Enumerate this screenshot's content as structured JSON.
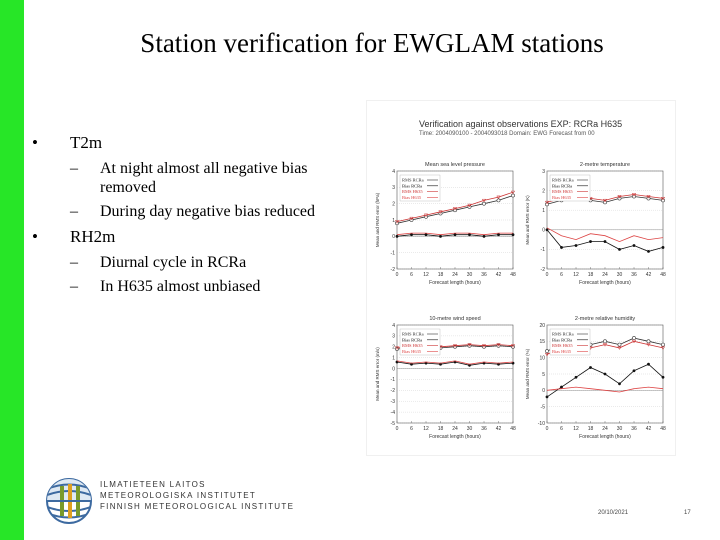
{
  "slide": {
    "title": "Station verification for EWGLAM stations",
    "bullets": [
      {
        "label": "T2m",
        "subs": [
          "At night almost all negative bias removed",
          "During day negative bias reduced"
        ]
      },
      {
        "label": "RH2m",
        "subs": [
          "Diurnal cycle in RCRa",
          "In H635 almost unbiased"
        ]
      }
    ],
    "footer": {
      "date": "20/10/2021",
      "page": "17"
    }
  },
  "logo": {
    "lines": [
      "ILMATIETEEN LAITOS",
      "METEOROLOGISKA INSTITUTET",
      "FINNISH METEOROLOGICAL INSTITUTE"
    ]
  },
  "figure": {
    "title": "Verification against observations EXP: RCRa H635",
    "subtitle": "Time: 2004090100 - 2004093018   Domain: EWG Forecast from 00",
    "xlabel": "Forecast length (hours)",
    "x_ticks": [
      "0",
      "6",
      "12",
      "18",
      "24",
      "30",
      "36",
      "42",
      "48"
    ],
    "legend": [
      "RMS RCRa",
      "Bias RCRa",
      "RMS H635",
      "Bias H635"
    ]
  },
  "chart_data": [
    {
      "type": "line",
      "title": "Mean sea level pressure",
      "ylabel": "Mean and RMS error (hPa)",
      "x": [
        0,
        6,
        12,
        18,
        24,
        30,
        36,
        42,
        48
      ],
      "ylim": [
        -2,
        4
      ],
      "y_ticks": [
        -2,
        -1,
        0,
        1,
        2,
        3,
        4
      ],
      "series": [
        {
          "name": "RMS RCRa",
          "values": [
            0.8,
            1.0,
            1.2,
            1.4,
            1.6,
            1.8,
            2.0,
            2.2,
            2.5
          ],
          "color": "#333333",
          "marker": "circle"
        },
        {
          "name": "Bias RCRa",
          "values": [
            0.0,
            0.1,
            0.1,
            0.0,
            0.1,
            0.1,
            0.0,
            0.1,
            0.1
          ],
          "color": "#111111",
          "marker": "dot"
        },
        {
          "name": "RMS H635",
          "values": [
            0.9,
            1.1,
            1.3,
            1.5,
            1.7,
            1.9,
            2.2,
            2.4,
            2.7
          ],
          "color": "#cc3333",
          "marker": "triangle"
        },
        {
          "name": "Bias H635",
          "values": [
            0.1,
            0.2,
            0.2,
            0.1,
            0.2,
            0.2,
            0.1,
            0.2,
            0.2
          ],
          "color": "#dd4444",
          "marker": "none"
        }
      ]
    },
    {
      "type": "line",
      "title": "2-metre temperature",
      "ylabel": "Mean and RMS error (K)",
      "x": [
        0,
        6,
        12,
        18,
        24,
        30,
        36,
        42,
        48
      ],
      "ylim": [
        -2,
        3
      ],
      "y_ticks": [
        -2,
        -1,
        0,
        1,
        2,
        3
      ],
      "series": [
        {
          "name": "RMS RCRa",
          "values": [
            1.3,
            1.5,
            1.6,
            1.5,
            1.4,
            1.6,
            1.7,
            1.6,
            1.5
          ],
          "color": "#333333",
          "marker": "circle"
        },
        {
          "name": "Bias RCRa",
          "values": [
            0.0,
            -0.9,
            -0.8,
            -0.6,
            -0.6,
            -1.0,
            -0.8,
            -1.1,
            -0.9
          ],
          "color": "#111111",
          "marker": "dot"
        },
        {
          "name": "RMS H635",
          "values": [
            1.4,
            1.6,
            1.7,
            1.6,
            1.5,
            1.7,
            1.8,
            1.7,
            1.6
          ],
          "color": "#cc3333",
          "marker": "triangle"
        },
        {
          "name": "Bias H635",
          "values": [
            0.1,
            -0.3,
            -0.5,
            -0.2,
            -0.3,
            -0.6,
            -0.3,
            -0.5,
            -0.4
          ],
          "color": "#dd4444",
          "marker": "none"
        }
      ]
    },
    {
      "type": "line",
      "title": "10-metre wind speed",
      "ylabel": "Mean and RMS error (m/s)",
      "x": [
        0,
        6,
        12,
        18,
        24,
        30,
        36,
        42,
        48
      ],
      "ylim": [
        -5,
        4
      ],
      "y_ticks": [
        -5,
        -4,
        -3,
        -2,
        -1,
        0,
        1,
        2,
        3,
        4
      ],
      "series": [
        {
          "name": "RMS RCRa",
          "values": [
            1.8,
            1.9,
            2.0,
            1.9,
            2.0,
            2.1,
            2.0,
            2.1,
            2.0
          ],
          "color": "#333333",
          "marker": "circle"
        },
        {
          "name": "Bias RCRa",
          "values": [
            0.6,
            0.4,
            0.5,
            0.4,
            0.6,
            0.3,
            0.5,
            0.4,
            0.5
          ],
          "color": "#111111",
          "marker": "dot"
        },
        {
          "name": "RMS H635",
          "values": [
            1.9,
            2.0,
            2.1,
            2.0,
            2.1,
            2.2,
            2.1,
            2.2,
            2.1
          ],
          "color": "#cc3333",
          "marker": "triangle"
        },
        {
          "name": "Bias H635",
          "values": [
            0.7,
            0.5,
            0.6,
            0.5,
            0.7,
            0.4,
            0.6,
            0.5,
            0.6
          ],
          "color": "#dd4444",
          "marker": "none"
        }
      ]
    },
    {
      "type": "line",
      "title": "2-metre relative humidity",
      "ylabel": "Mean and RMS error (%)",
      "x": [
        0,
        6,
        12,
        18,
        24,
        30,
        36,
        42,
        48
      ],
      "ylim": [
        -10,
        20
      ],
      "y_ticks": [
        -10,
        -5,
        0,
        5,
        10,
        15,
        20
      ],
      "series": [
        {
          "name": "RMS RCRa",
          "values": [
            12.0,
            14.0,
            13.0,
            14.0,
            15.0,
            14.0,
            16.0,
            15.0,
            14.0
          ],
          "color": "#333333",
          "marker": "circle"
        },
        {
          "name": "Bias RCRa",
          "values": [
            -2.0,
            1.0,
            4.0,
            7.0,
            5.0,
            2.0,
            6.0,
            8.0,
            4.0
          ],
          "color": "#111111",
          "marker": "dot"
        },
        {
          "name": "RMS H635",
          "values": [
            11.0,
            13.0,
            12.0,
            13.0,
            14.0,
            13.0,
            15.0,
            14.0,
            13.0
          ],
          "color": "#cc3333",
          "marker": "triangle"
        },
        {
          "name": "Bias H635",
          "values": [
            0.0,
            0.5,
            1.0,
            0.5,
            0.0,
            -0.5,
            0.5,
            1.0,
            0.5
          ],
          "color": "#dd4444",
          "marker": "none"
        }
      ]
    }
  ]
}
